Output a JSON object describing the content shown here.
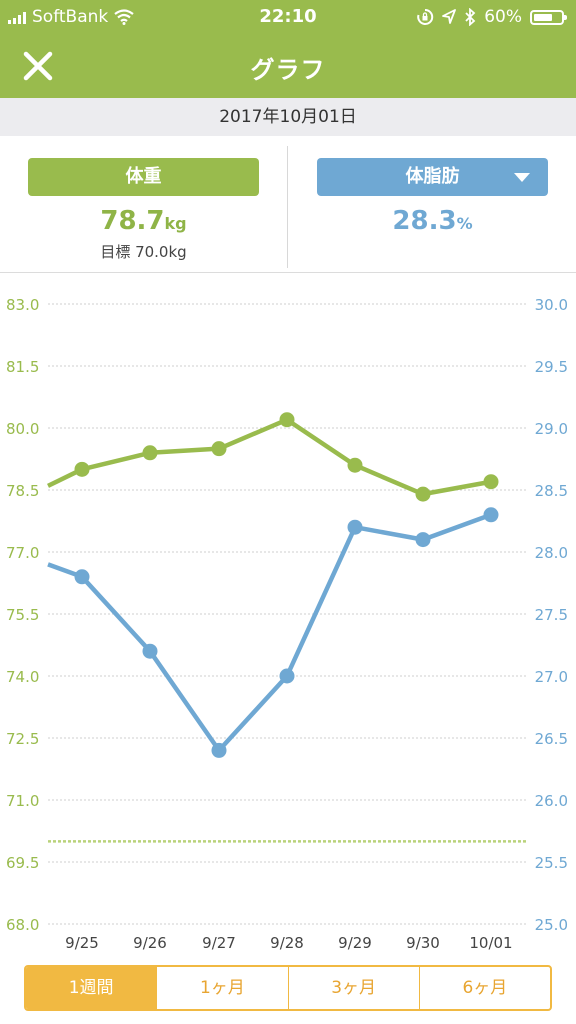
{
  "status_bar": {
    "carrier": "SoftBank",
    "time": "22:10",
    "battery_percent": "60%",
    "battery_level": 0.6
  },
  "nav": {
    "title": "グラフ",
    "close_icon": "close-icon"
  },
  "date": "2017年10月01日",
  "weight": {
    "label": "体重",
    "value": "78.7",
    "unit": "kg",
    "goal": "目標 70.0kg",
    "color": "#99bb4d"
  },
  "body_fat": {
    "label": "体脂肪",
    "value": "28.3",
    "unit": "%",
    "color": "#6fa8d3"
  },
  "chart_data": {
    "type": "line",
    "categories": [
      "9/25",
      "9/26",
      "9/27",
      "9/28",
      "9/29",
      "9/30",
      "10/01"
    ],
    "series": [
      {
        "axis": "left",
        "color": "#99bb4d",
        "leading_value": 78.6,
        "values": [
          79.0,
          79.4,
          79.5,
          80.2,
          79.1,
          78.4,
          78.7
        ]
      },
      {
        "axis": "right",
        "color": "#6fa8d3",
        "leading_value": 27.9,
        "values": [
          27.8,
          27.2,
          26.4,
          27.0,
          28.2,
          28.1,
          28.3
        ]
      }
    ],
    "left_axis": {
      "ylim": [
        68.0,
        83.0
      ],
      "ticks": [
        "83.0",
        "81.5",
        "80.0",
        "78.5",
        "77.0",
        "75.5",
        "74.0",
        "72.5",
        "71.0",
        "69.5",
        "68.0"
      ],
      "color": "#99bb4d"
    },
    "right_axis": {
      "ylim": [
        25.0,
        30.0
      ],
      "ticks": [
        "30.0",
        "29.5",
        "29.0",
        "28.5",
        "28.0",
        "27.5",
        "27.0",
        "26.5",
        "26.0",
        "25.5",
        "25.0"
      ],
      "color": "#6fa8d3"
    },
    "goal_line": 70.0,
    "grid": true
  },
  "period_tabs": [
    {
      "label": "1週間",
      "active": true
    },
    {
      "label": "1ヶ月",
      "active": false
    },
    {
      "label": "3ヶ月",
      "active": false
    },
    {
      "label": "6ヶ月",
      "active": false
    }
  ]
}
